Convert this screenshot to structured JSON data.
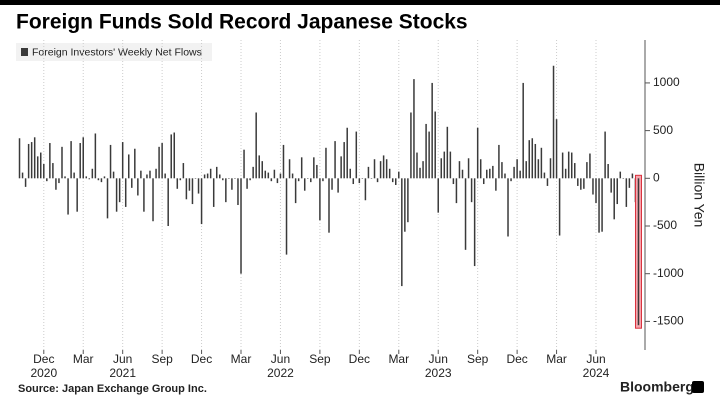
{
  "chart_data": {
    "type": "bar",
    "title": "Foreign Funds Sold Record Japanese Stocks",
    "legend": "Foreign Investors' Weekly Net Flows",
    "y_axis_label": "Billion Yen",
    "source": "Source: Japan Exchange Group Inc.",
    "brand": "Bloomberg",
    "color": "#3a3a3a",
    "ylim": [
      -1800,
      1450
    ],
    "yticks": [
      -1500,
      -1000,
      -500,
      0,
      500,
      1000
    ],
    "grid": true,
    "categories": [
      null,
      null,
      null,
      null,
      null,
      null,
      null,
      null,
      null,
      null,
      null,
      null,
      null,
      null,
      null,
      null,
      null,
      null,
      null,
      null,
      null,
      null,
      null,
      null,
      null,
      null,
      null,
      null,
      null,
      null,
      null,
      null,
      null,
      null,
      null,
      null,
      null,
      null,
      null,
      null,
      null,
      null,
      null,
      null,
      null,
      null,
      null,
      null,
      null,
      null,
      null,
      null,
      null,
      null,
      null,
      null,
      null,
      null,
      null,
      null,
      null,
      null,
      null,
      null,
      null,
      null,
      null,
      null,
      null,
      null,
      null,
      null,
      null,
      null,
      null,
      null,
      null,
      null,
      null,
      null,
      null,
      null,
      null,
      null,
      null,
      null,
      null,
      null,
      null,
      null,
      null,
      null,
      null,
      null,
      null,
      null,
      null,
      null,
      null,
      null,
      null,
      null,
      null,
      null,
      null,
      null,
      null,
      null,
      null,
      null,
      null,
      null,
      null,
      null,
      null,
      null,
      null,
      null,
      null,
      null,
      null,
      null,
      null,
      null,
      null,
      null,
      null,
      null,
      null,
      null,
      null,
      null,
      null,
      null,
      null,
      null,
      null,
      null,
      null,
      null,
      null,
      null,
      null,
      null,
      null,
      null,
      null,
      null,
      null,
      null,
      null,
      null,
      null,
      null,
      null,
      null,
      null,
      null,
      null,
      null,
      null,
      null,
      null,
      null,
      null,
      null,
      null,
      null,
      null,
      null,
      null,
      null,
      null,
      null,
      null,
      null,
      null,
      null,
      null,
      null,
      null,
      null,
      null,
      null,
      null,
      null,
      null,
      null,
      null,
      null,
      null,
      null,
      null,
      null,
      null,
      null,
      null,
      null,
      null,
      null,
      null,
      null,
      null,
      null,
      null
    ],
    "values": [
      420,
      60,
      -90,
      360,
      380,
      430,
      230,
      270,
      150,
      -30,
      370,
      160,
      -120,
      -50,
      330,
      20,
      -380,
      390,
      60,
      -350,
      370,
      430,
      20,
      -10,
      100,
      470,
      -20,
      -40,
      20,
      -420,
      350,
      70,
      -350,
      -250,
      380,
      -300,
      250,
      -100,
      310,
      -180,
      80,
      -350,
      40,
      80,
      -450,
      100,
      330,
      370,
      50,
      -500,
      460,
      480,
      -110,
      -20,
      160,
      -220,
      -130,
      -270,
      0,
      -160,
      -480,
      40,
      50,
      100,
      -300,
      120,
      40,
      -20,
      -250,
      0,
      -120,
      0,
      -280,
      -1000,
      300,
      -110,
      -20,
      120,
      690,
      240,
      180,
      80,
      60,
      -30,
      90,
      -50,
      50,
      350,
      -800,
      200,
      50,
      -260,
      -30,
      220,
      -130,
      0,
      -40,
      220,
      140,
      -440,
      -30,
      320,
      -570,
      -120,
      390,
      -150,
      230,
      380,
      530,
      100,
      -60,
      490,
      -50,
      0,
      -230,
      120,
      0,
      200,
      -40,
      180,
      240,
      200,
      100,
      -40,
      -70,
      70,
      -1130,
      -560,
      -460,
      690,
      1040,
      270,
      110,
      180,
      570,
      490,
      1000,
      700,
      -360,
      210,
      280,
      540,
      280,
      -60,
      -260,
      180,
      90,
      -750,
      210,
      -250,
      -920,
      530,
      200,
      -60,
      90,
      100,
      130,
      -130,
      350,
      170,
      50,
      -610,
      -30,
      120,
      200,
      80,
      1000,
      180,
      400,
      420,
      360,
      200,
      320,
      60,
      -80,
      210,
      1180,
      620,
      -600,
      270,
      100,
      280,
      270,
      160,
      -80,
      -120,
      -110,
      170,
      260,
      -170,
      -260,
      -570,
      -560,
      490,
      150,
      -150,
      -430,
      -270,
      70,
      0,
      -300,
      -100,
      50,
      -250,
      -1540
    ],
    "xticks": [
      {
        "value": 8,
        "label": "Dec"
      },
      {
        "value": 21,
        "label": "Mar"
      },
      {
        "value": 34,
        "label": "Jun"
      },
      {
        "value": 47,
        "label": "Sep"
      },
      {
        "value": 60,
        "label": "Dec"
      },
      {
        "value": 73,
        "label": "Mar"
      },
      {
        "value": 86,
        "label": "Jun"
      },
      {
        "value": 99,
        "label": "Sep"
      },
      {
        "value": 112,
        "label": "Dec"
      },
      {
        "value": 125,
        "label": "Mar"
      },
      {
        "value": 138,
        "label": "Jun"
      },
      {
        "value": 151,
        "label": "Sep"
      },
      {
        "value": 164,
        "label": "Dec"
      },
      {
        "value": 177,
        "label": "Mar"
      },
      {
        "value": 190,
        "label": "Jun"
      }
    ],
    "xyears": [
      {
        "value": 8,
        "label": "2020"
      },
      {
        "value": 34,
        "label": "2021"
      },
      {
        "value": 86,
        "label": "2022"
      },
      {
        "value": 138,
        "label": "2023"
      },
      {
        "value": 190,
        "label": "2024"
      }
    ]
  }
}
